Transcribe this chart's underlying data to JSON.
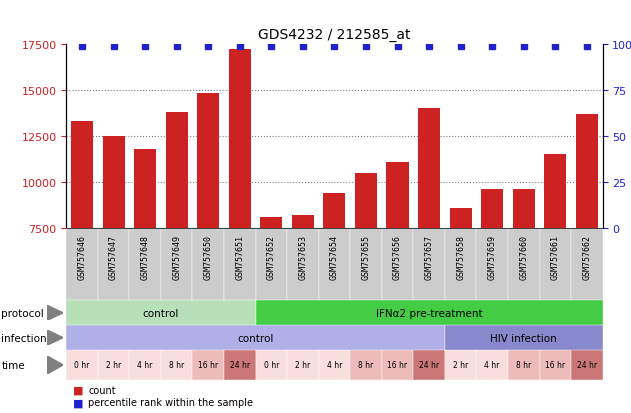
{
  "title": "GDS4232 / 212585_at",
  "samples": [
    "GSM757646",
    "GSM757647",
    "GSM757648",
    "GSM757649",
    "GSM757650",
    "GSM757651",
    "GSM757652",
    "GSM757653",
    "GSM757654",
    "GSM757655",
    "GSM757656",
    "GSM757657",
    "GSM757658",
    "GSM757659",
    "GSM757660",
    "GSM757661",
    "GSM757662"
  ],
  "bar_values": [
    13300,
    12500,
    11800,
    13800,
    14800,
    17200,
    8100,
    8200,
    9400,
    10500,
    11100,
    14000,
    8600,
    9600,
    9600,
    11500,
    13700
  ],
  "bar_color": "#cc2222",
  "dot_color": "#2222cc",
  "ylim_left": [
    7500,
    17500
  ],
  "ylim_right": [
    0,
    100
  ],
  "yticks_left": [
    7500,
    10000,
    12500,
    15000,
    17500
  ],
  "yticks_right": [
    0,
    25,
    50,
    75,
    100
  ],
  "protocol_labels": [
    {
      "text": "control",
      "start": 0,
      "end": 6,
      "color": "#b8e0b8"
    },
    {
      "text": "IFNα2 pre-treatment",
      "start": 6,
      "end": 17,
      "color": "#44cc44"
    }
  ],
  "infection_labels": [
    {
      "text": "control",
      "start": 0,
      "end": 12,
      "color": "#b0b0e8"
    },
    {
      "text": "HIV infection",
      "start": 12,
      "end": 17,
      "color": "#8888cc"
    }
  ],
  "time_labels": [
    "0 hr",
    "2 hr",
    "4 hr",
    "8 hr",
    "16 hr",
    "24 hr",
    "0 hr",
    "2 hr",
    "4 hr",
    "8 hr",
    "16 hr",
    "24 hr",
    "2 hr",
    "4 hr",
    "8 hr",
    "16 hr",
    "24 hr"
  ],
  "time_colors": [
    "#f9dede",
    "#f9dede",
    "#f9dede",
    "#f9dede",
    "#eebbbb",
    "#cc7777",
    "#f9dede",
    "#f9dede",
    "#f9dede",
    "#eebbbb",
    "#eebbbb",
    "#cc7777",
    "#f9dede",
    "#f9dede",
    "#eebbbb",
    "#eebbbb",
    "#cc7777"
  ],
  "legend_count_color": "#cc2222",
  "legend_dot_color": "#2222cc",
  "label_bg_color": "#cccccc"
}
